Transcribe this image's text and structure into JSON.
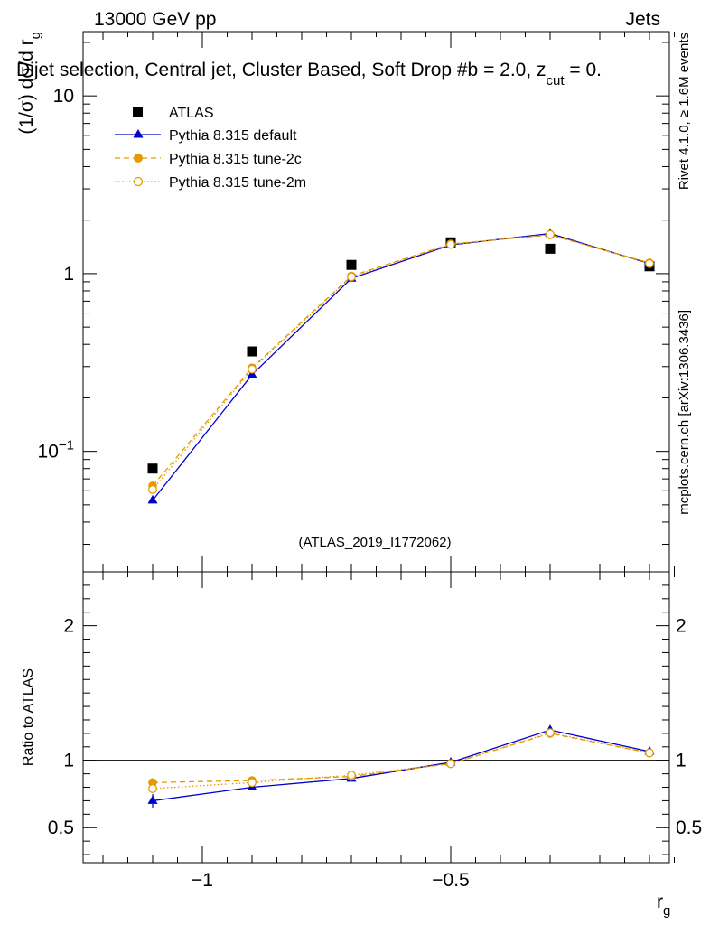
{
  "header": {
    "energy_label": "13000 GeV pp",
    "category_label": "Jets",
    "selection_title": "Dijet selection, Central jet, Cluster Based, Soft Drop #b = 2.0, z",
    "selection_title_sub": "cut",
    "selection_title_end": " = 0.",
    "side_label_top": "Rivet 4.1.0, ≥ 1.6M events",
    "side_label_bottom": "mcplots.cern.ch [arXiv:1306.3436]",
    "analysis_id": "(ATLAS_2019_I1772062)"
  },
  "colors": {
    "data": "#000000",
    "default": "#0000cc",
    "tune2c": "#e69a00",
    "tune2m": "#e69a00",
    "refline": "#000000"
  },
  "chart_data": [
    {
      "type": "line",
      "scale": "log",
      "ylabel": "(1/σ) dσ/d r",
      "ylabel_sub": "g",
      "xlabel": "",
      "xlim": [
        -1.24,
        -0.06
      ],
      "ylim": [
        0.021,
        23
      ],
      "y_tick_labels": [
        {
          "value": 10,
          "label": "10"
        },
        {
          "value": 1,
          "label": "1"
        },
        {
          "value": 0.1,
          "label": "10",
          "exp": "−1"
        }
      ],
      "x": [
        -1.1,
        -0.9,
        -0.7,
        -0.5,
        -0.3,
        -0.1
      ],
      "series": [
        {
          "name": "ATLAS",
          "style": "data",
          "values": [
            0.08,
            0.365,
            1.12,
            1.5,
            1.38,
            1.1
          ]
        },
        {
          "name": "Pythia 8.315 default",
          "style": "default",
          "values": [
            0.053,
            0.27,
            0.94,
            1.45,
            1.68,
            1.14
          ]
        },
        {
          "name": "Pythia 8.315 tune-2c",
          "style": "tune2c",
          "values": [
            0.064,
            0.295,
            0.97,
            1.47,
            1.65,
            1.15
          ]
        },
        {
          "name": "Pythia 8.315 tune-2m",
          "style": "tune2m",
          "values": [
            0.061,
            0.29,
            0.96,
            1.46,
            1.66,
            1.14
          ]
        }
      ]
    },
    {
      "type": "line",
      "scale": "linear",
      "ylabel": "Ratio to ATLAS",
      "xlabel": "r",
      "xlabel_sub": "g",
      "xlim": [
        -1.24,
        -0.06
      ],
      "ylim": [
        0.24,
        2.4
      ],
      "y_tick_labels": [
        {
          "value": 2,
          "label": "2"
        },
        {
          "value": 1,
          "label": "1"
        },
        {
          "value": 0.5,
          "label": "0.5"
        }
      ],
      "x_tick_labels": [
        {
          "value": -1,
          "label": "−1"
        },
        {
          "value": -0.5,
          "label": "−0.5"
        }
      ],
      "x": [
        -1.1,
        -0.9,
        -0.7,
        -0.5,
        -0.3,
        -0.1
      ],
      "series": [
        {
          "name": "Pythia 8.315 default",
          "style": "default",
          "values": [
            0.7,
            0.8,
            0.865,
            0.985,
            1.225,
            1.065
          ],
          "errors": [
            0.05,
            0.01,
            0.01,
            0.008,
            0.01,
            0.01
          ]
        },
        {
          "name": "Pythia 8.315 tune-2c",
          "style": "tune2c",
          "values": [
            0.835,
            0.85,
            0.88,
            0.975,
            1.2,
            1.055
          ],
          "errors": [
            0.03,
            0.01,
            0.01,
            0.008,
            0.01,
            0.01
          ]
        },
        {
          "name": "Pythia 8.315 tune-2m",
          "style": "tune2m",
          "values": [
            0.79,
            0.835,
            0.89,
            0.975,
            1.205,
            1.055
          ],
          "errors": [
            0.02,
            0.01,
            0.01,
            0.008,
            0.01,
            0.01
          ]
        }
      ]
    }
  ]
}
